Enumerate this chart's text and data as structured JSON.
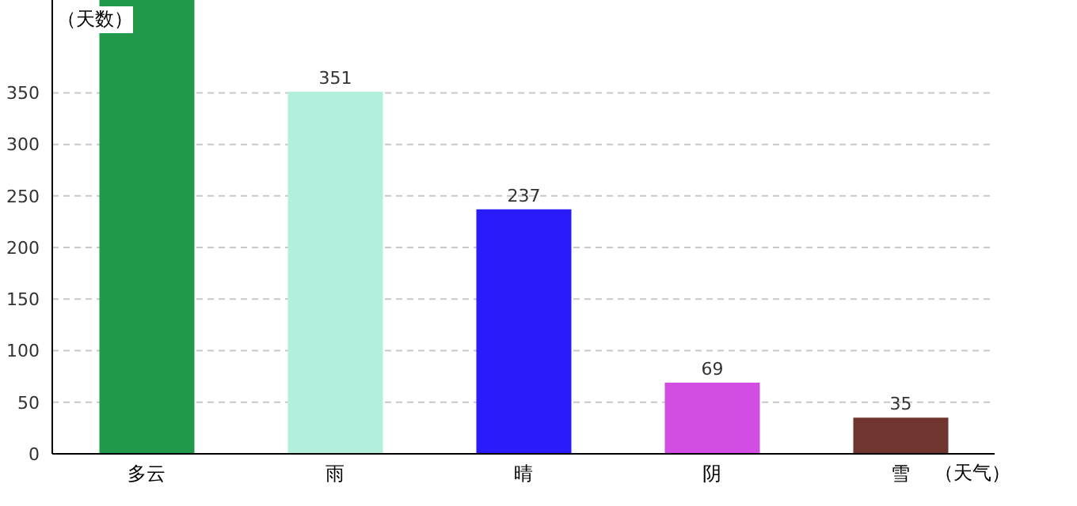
{
  "chart_data": {
    "type": "bar",
    "xlabel": "（天气）",
    "ylabel": "（天数）",
    "categories": [
      "多云",
      "雨",
      "晴",
      "阴",
      "雪"
    ],
    "values": [
      440,
      351,
      237,
      69,
      35
    ],
    "colors": [
      "#22994a",
      "#b2f0dd",
      "#2a1cfa",
      "#d24ee2",
      "#713530"
    ],
    "value_labels": [
      null,
      "351",
      "237",
      "69",
      "35"
    ],
    "ylim": [
      0,
      440
    ],
    "yticks": [
      0,
      50,
      100,
      150,
      200,
      250,
      300,
      350
    ],
    "grid": "y"
  }
}
